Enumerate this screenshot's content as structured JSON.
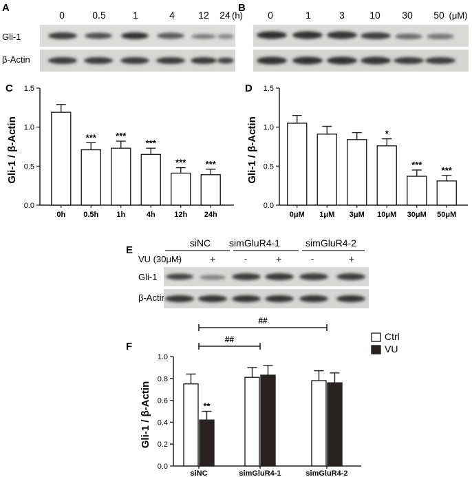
{
  "panels": {
    "A": {
      "letter": "A",
      "lane_labels": [
        "0",
        "0.5",
        "1",
        "4",
        "12",
        "24"
      ],
      "unit": "(h)",
      "rows": [
        "Gli-1",
        "β-Actin"
      ]
    },
    "B": {
      "letter": "B",
      "lane_labels": [
        "0",
        "1",
        "3",
        "10",
        "30",
        "50"
      ],
      "unit": "(μM)"
    },
    "E": {
      "letter": "E",
      "groups": [
        "siNC",
        "simGluR4-1",
        "simGluR4-2"
      ],
      "treatment_label": "VU (30μM)",
      "signs": [
        "-",
        "+",
        "-",
        "+",
        "-",
        "+"
      ],
      "rows": [
        "Gli-1",
        "β-Actin"
      ]
    }
  },
  "chart_data": [
    {
      "panel": "C",
      "type": "bar",
      "ylabel": "Gli-1 / β-Actin",
      "categories": [
        "0h",
        "0.5h",
        "1h",
        "4h",
        "12h",
        "24h"
      ],
      "values": [
        1.19,
        0.71,
        0.73,
        0.65,
        0.41,
        0.39
      ],
      "errors": [
        0.1,
        0.09,
        0.09,
        0.08,
        0.07,
        0.07
      ],
      "annotations": [
        "",
        "***",
        "***",
        "***",
        "***",
        "***"
      ],
      "ylim": [
        0,
        1.5
      ],
      "yticks": [
        "0.0",
        "0.5",
        "1.0",
        "1.5"
      ]
    },
    {
      "panel": "D",
      "type": "bar",
      "ylabel": "Gli-1 / β-Actin",
      "categories": [
        "0μM",
        "1μM",
        "3μM",
        "10μM",
        "30μM",
        "50μM"
      ],
      "values": [
        1.05,
        0.91,
        0.84,
        0.76,
        0.37,
        0.31
      ],
      "errors": [
        0.1,
        0.1,
        0.09,
        0.09,
        0.08,
        0.07
      ],
      "annotations": [
        "",
        "",
        "",
        "*",
        "***",
        "***"
      ],
      "ylim": [
        0,
        1.5
      ],
      "yticks": [
        "0.0",
        "0.5",
        "1.0",
        "1.5"
      ]
    },
    {
      "panel": "F",
      "type": "bar",
      "ylabel": "Gli-1 / β-Actin",
      "categories": [
        "siNC",
        "simGluR4-1",
        "simGluR4-2"
      ],
      "series": [
        {
          "name": "Ctrl",
          "values": [
            0.75,
            0.81,
            0.78
          ],
          "errors": [
            0.09,
            0.09,
            0.09
          ],
          "color": "#ffffff"
        },
        {
          "name": "VU",
          "values": [
            0.42,
            0.83,
            0.76
          ],
          "errors": [
            0.08,
            0.09,
            0.09
          ],
          "color": "#2a2220"
        }
      ],
      "annotations": [
        {
          "category": 0,
          "series": 1,
          "text": "**"
        }
      ],
      "brackets": [
        {
          "from": 0,
          "to": 1,
          "text": "##"
        },
        {
          "from": 0,
          "to": 2,
          "text": "##"
        }
      ],
      "ylim": [
        0,
        1.0
      ],
      "yticks": [
        "0.0",
        "0.2",
        "0.4",
        "0.6",
        "0.8",
        "1.0"
      ],
      "legend": "top-right"
    }
  ]
}
